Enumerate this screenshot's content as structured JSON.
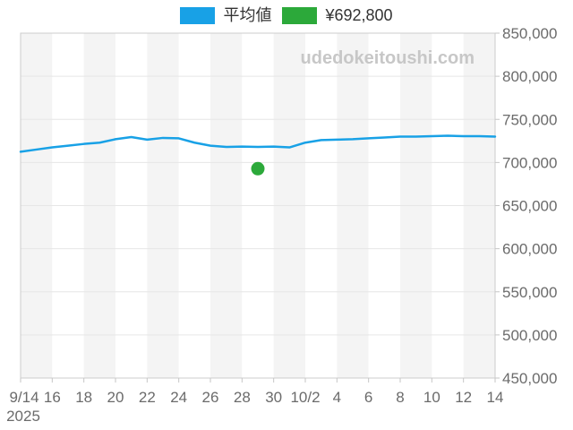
{
  "legend": {
    "average_label": "平均値",
    "price_label": "¥692,800"
  },
  "watermark": "udedokeitoushi.com",
  "chart_data": {
    "type": "line",
    "title": "",
    "xlabel": "",
    "ylabel": "",
    "x": [
      "9/14",
      "9/15",
      "9/16",
      "9/17",
      "9/18",
      "9/19",
      "9/20",
      "9/21",
      "9/22",
      "9/23",
      "9/24",
      "9/25",
      "9/26",
      "9/27",
      "9/28",
      "9/29",
      "9/30",
      "10/1",
      "10/2",
      "10/3",
      "10/4",
      "10/5",
      "10/6",
      "10/7",
      "10/8",
      "10/9",
      "10/10",
      "10/11",
      "10/12",
      "10/13",
      "10/14"
    ],
    "series": [
      {
        "name": "平均値",
        "type": "line",
        "color": "#18a1e6",
        "values": [
          712500,
          715000,
          717500,
          719500,
          721500,
          723000,
          727000,
          729500,
          726500,
          728500,
          728000,
          723000,
          719500,
          718000,
          718500,
          718000,
          718500,
          717500,
          723000,
          726000,
          726500,
          727000,
          728000,
          729000,
          730000,
          730000,
          730500,
          731000,
          730500,
          730500,
          730000
        ]
      },
      {
        "name": "¥692,800",
        "type": "scatter",
        "color": "#2ca93a",
        "points": [
          {
            "x": "9/29",
            "y": 692800
          }
        ]
      }
    ],
    "xticklabels": [
      "9/14",
      "16",
      "18",
      "20",
      "22",
      "24",
      "26",
      "28",
      "30",
      "10/2",
      "4",
      "6",
      "8",
      "10",
      "12",
      "14"
    ],
    "x_secondary_label": "2025",
    "ylim": [
      450000,
      850000
    ],
    "ytick_step": 50000,
    "yticklabels": [
      "850,000",
      "800,000",
      "750,000",
      "700,000",
      "650,000",
      "600,000",
      "550,000",
      "500,000",
      "450,000"
    ],
    "grid": true,
    "legend_position": "top",
    "band_colors": [
      "#f4f4f4",
      "#ffffff"
    ],
    "grid_color": "#e6e6e6",
    "border_color": "#cccccc",
    "tick_color": "#c6c6c6",
    "axis_label_color": "#6b6b6b",
    "watermark_color": "#c7c7c7"
  }
}
